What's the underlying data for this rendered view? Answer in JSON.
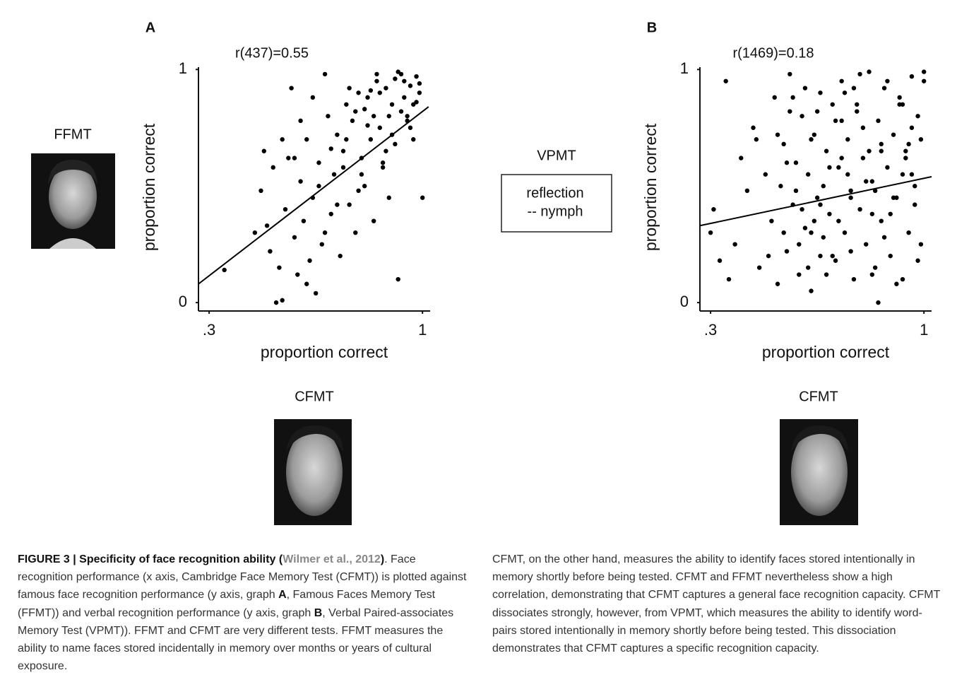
{
  "chart_data": [
    {
      "type": "scatter",
      "panel_label": "A",
      "annotation": "r(437)=0.55",
      "x_label": "proportion correct",
      "y_label": "proportion correct",
      "color": "#000000",
      "xlim": [
        0.265,
        1.025
      ],
      "ylim": [
        -0.036,
        1.01
      ],
      "xticks": [
        {
          "value": 0.3,
          "label": ".3"
        },
        1
      ],
      "yticks": [
        0,
        1
      ],
      "fit_line": {
        "x": [
          0.265,
          1.02
        ],
        "y": [
          0.08,
          0.84
        ]
      },
      "x": [
        0.35,
        0.48,
        0.52,
        0.54,
        0.54,
        0.57,
        0.68,
        0.65,
        0.92,
        1.0,
        0.45,
        0.47,
        0.49,
        0.5,
        0.51,
        0.53,
        0.55,
        0.56,
        0.58,
        0.59,
        0.6,
        0.61,
        0.62,
        0.63,
        0.64,
        0.66,
        0.67,
        0.69,
        0.7,
        0.71,
        0.72,
        0.73,
        0.74,
        0.75,
        0.76,
        0.77,
        0.78,
        0.79,
        0.8,
        0.81,
        0.82,
        0.83,
        0.84,
        0.85,
        0.86,
        0.87,
        0.88,
        0.89,
        0.9,
        0.91,
        0.93,
        0.94,
        0.95,
        0.96,
        0.97,
        0.98,
        0.99,
        0.62,
        0.66,
        0.7,
        0.74,
        0.78,
        0.82,
        0.86,
        0.9,
        0.94,
        0.98,
        0.72,
        0.76,
        0.8,
        0.84,
        0.88,
        0.92,
        0.96,
        0.6,
        0.64,
        0.68,
        0.58,
        0.85,
        0.89,
        0.93,
        0.97,
        0.79,
        0.83,
        0.87,
        0.91,
        0.95,
        0.99,
        0.75,
        0.81
      ],
      "y": [
        0.14,
        0.65,
        0.0,
        0.01,
        0.7,
        0.92,
        0.98,
        0.04,
        0.1,
        0.45,
        0.3,
        0.48,
        0.33,
        0.22,
        0.58,
        0.15,
        0.4,
        0.62,
        0.28,
        0.12,
        0.52,
        0.35,
        0.7,
        0.18,
        0.45,
        0.6,
        0.25,
        0.8,
        0.38,
        0.55,
        0.72,
        0.2,
        0.65,
        0.85,
        0.42,
        0.78,
        0.3,
        0.9,
        0.62,
        0.5,
        0.88,
        0.7,
        0.35,
        0.95,
        0.75,
        0.58,
        0.92,
        0.8,
        0.85,
        0.68,
        0.98,
        0.88,
        0.78,
        0.93,
        0.85,
        0.97,
        0.9,
        0.08,
        0.5,
        0.66,
        0.58,
        0.82,
        0.76,
        0.9,
        0.72,
        0.95,
        0.86,
        0.42,
        0.92,
        0.55,
        0.8,
        0.65,
        0.99,
        0.75,
        0.78,
        0.88,
        0.3,
        0.62,
        0.98,
        0.45,
        0.82,
        0.7,
        0.48,
        0.91,
        0.6,
        0.96,
        0.8,
        0.94,
        0.7,
        0.83
      ]
    },
    {
      "type": "scatter",
      "panel_label": "B",
      "annotation": "r(1469)=0.18",
      "x_label": "proportion correct",
      "y_label": "proportion correct",
      "color": "#000000",
      "xlim": [
        0.265,
        1.025
      ],
      "ylim": [
        -0.036,
        1.01
      ],
      "xticks": [
        {
          "value": 0.3,
          "label": ".3"
        },
        1
      ],
      "yticks": [
        0,
        1
      ],
      "fit_line": {
        "x": [
          0.265,
          1.025
        ],
        "y": [
          0.33,
          0.54
        ]
      },
      "x": [
        0.3,
        0.31,
        0.33,
        0.35,
        0.38,
        0.4,
        0.42,
        0.44,
        0.46,
        0.48,
        0.5,
        0.51,
        0.52,
        0.53,
        0.54,
        0.55,
        0.56,
        0.57,
        0.58,
        0.59,
        0.6,
        0.61,
        0.62,
        0.63,
        0.64,
        0.65,
        0.66,
        0.67,
        0.68,
        0.69,
        0.7,
        0.71,
        0.72,
        0.73,
        0.74,
        0.75,
        0.76,
        0.77,
        0.78,
        0.79,
        0.8,
        0.81,
        0.82,
        0.83,
        0.84,
        0.85,
        0.86,
        0.87,
        0.88,
        0.89,
        0.9,
        0.91,
        0.92,
        0.93,
        0.94,
        0.95,
        0.96,
        0.97,
        0.98,
        0.99,
        1.0,
        0.55,
        0.6,
        0.65,
        0.7,
        0.75,
        0.8,
        0.85,
        0.9,
        0.95,
        0.57,
        0.62,
        0.67,
        0.72,
        0.77,
        0.82,
        0.87,
        0.92,
        0.97,
        0.52,
        0.58,
        0.63,
        0.68,
        0.73,
        0.78,
        0.83,
        0.88,
        0.93,
        0.98,
        0.54,
        0.61,
        0.66,
        0.71,
        0.76,
        0.81,
        0.86,
        0.91,
        0.96,
        0.64,
        0.74,
        0.84,
        0.94,
        0.59,
        0.69,
        0.79,
        0.89,
        0.99,
        0.56,
        0.66,
        0.76,
        0.86,
        0.96,
        0.63,
        0.73,
        0.83,
        0.93,
        0.45,
        0.49,
        0.36,
        1.0
      ],
      "y": [
        0.3,
        0.4,
        0.18,
        0.95,
        0.25,
        0.62,
        0.48,
        0.75,
        0.15,
        0.55,
        0.35,
        0.88,
        0.08,
        0.5,
        0.68,
        0.22,
        0.98,
        0.42,
        0.6,
        0.12,
        0.8,
        0.32,
        0.55,
        0.05,
        0.72,
        0.45,
        0.9,
        0.28,
        0.65,
        0.38,
        0.85,
        0.18,
        0.58,
        0.95,
        0.3,
        0.7,
        0.48,
        0.1,
        0.82,
        0.4,
        0.62,
        0.25,
        0.99,
        0.52,
        0.15,
        0.78,
        0.35,
        0.92,
        0.58,
        0.2,
        0.72,
        0.45,
        0.88,
        0.1,
        0.65,
        0.3,
        0.97,
        0.5,
        0.8,
        0.25,
        0.99,
        0.6,
        0.4,
        0.82,
        0.2,
        0.55,
        0.75,
        0.0,
        0.45,
        0.68,
        0.88,
        0.15,
        0.5,
        0.35,
        0.92,
        0.65,
        0.28,
        0.85,
        0.42,
        0.72,
        0.48,
        0.7,
        0.12,
        0.62,
        0.85,
        0.38,
        0.95,
        0.55,
        0.18,
        0.3,
        0.92,
        0.42,
        0.78,
        0.22,
        0.52,
        0.68,
        0.08,
        0.75,
        0.35,
        0.9,
        0.48,
        0.62,
        0.25,
        0.58,
        0.98,
        0.38,
        0.7,
        0.82,
        0.2,
        0.45,
        0.65,
        0.55,
        0.3,
        0.78,
        0.12,
        0.85,
        0.7,
        0.2,
        0.1,
        0.95
      ]
    }
  ],
  "figure": {
    "y_tests": [
      "FFMT",
      "VPMT"
    ],
    "vpmt_example": [
      "reflection",
      "-- nymph"
    ],
    "x_tests": [
      "CFMT",
      "CFMT"
    ]
  },
  "caption": {
    "left": [
      "FIGURE 3 | Specificity of face recognition ability (",
      "Wilmer et al., 2012",
      ")",
      ". Face recognition performance (x axis, Cambridge Face Memory Test (CFMT)) is plotted against famous face recognition performance (y axis, graph ",
      "A",
      ", Famous Faces Memory Test (FFMT)) and verbal recognition performance (y axis, graph ",
      "B",
      ", Verbal Paired-associates Memory Test (VPMT)). FFMT and CFMT are very different tests. FFMT measures the ability to name faces stored incidentally in memory over months or years of cultural exposure."
    ],
    "right": "CFMT, on the other hand, measures the ability to identify faces stored intentionally in memory shortly before being tested. CFMT and FFMT nevertheless show a high correlation, demonstrating that CFMT captures a general face recognition capacity. CFMT dissociates strongly, however, from VPMT, which measures the ability to identify word-pairs stored intentionally in memory shortly before being tested. This dissociation demonstrates that CFMT captures a specific recognition capacity."
  }
}
